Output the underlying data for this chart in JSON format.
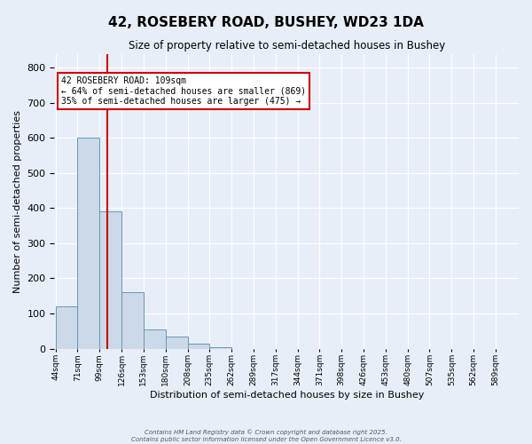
{
  "title": "42, ROSEBERY ROAD, BUSHEY, WD23 1DA",
  "subtitle": "Size of property relative to semi-detached houses in Bushey",
  "xlabel": "Distribution of semi-detached houses by size in Bushey",
  "ylabel": "Number of semi-detached properties",
  "bar_labels": [
    "44sqm",
    "71sqm",
    "99sqm",
    "126sqm",
    "153sqm",
    "180sqm",
    "208sqm",
    "235sqm",
    "262sqm",
    "289sqm",
    "317sqm",
    "344sqm",
    "371sqm",
    "398sqm",
    "426sqm",
    "453sqm",
    "480sqm",
    "507sqm",
    "535sqm",
    "562sqm",
    "589sqm"
  ],
  "bar_heights": [
    120,
    600,
    390,
    160,
    55,
    35,
    15,
    5,
    0,
    0,
    0,
    0,
    0,
    0,
    0,
    0,
    0,
    0,
    0,
    0,
    0
  ],
  "bar_color": "#ccd9e8",
  "bar_edge_color": "#6699bb",
  "vline_color": "#cc0000",
  "annotation_box_color": "#ffffff",
  "annotation_box_edge": "#cc0000",
  "ann_label": "42 ROSEBERY ROAD: 109sqm",
  "ann_smaller": "← 64% of semi-detached houses are smaller (869)",
  "ann_larger": "35% of semi-detached houses are larger (475) →",
  "ylim": [
    0,
    840
  ],
  "yticks": [
    0,
    100,
    200,
    300,
    400,
    500,
    600,
    700,
    800
  ],
  "background_color": "#e8eef8",
  "grid_color": "#ffffff",
  "footer1": "Contains HM Land Registry data © Crown copyright and database right 2025.",
  "footer2": "Contains public sector information licensed under the Open Government Licence v3.0."
}
